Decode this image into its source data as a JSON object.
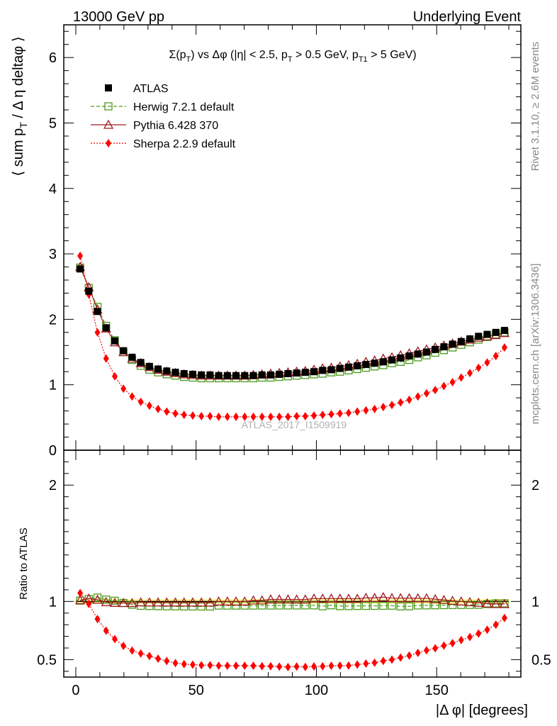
{
  "header": {
    "left": "13000 GeV pp",
    "right": "Underlying Event"
  },
  "side_text": {
    "rivet": "Rivet 3.1.10, ≥ 2.6M events",
    "mcplots": "mcplots.cern.ch [arXiv:1306.3436]"
  },
  "watermark": "ATLAS_2017_I1509919",
  "chart_data": {
    "type": "line",
    "title_parts": {
      "sigma": "Σ(p",
      "sub_T": "T",
      "mid": ") vs Δφ (|η| < 2.5, p",
      "sub_T2": "T",
      "mid2": " > 0.5 GeV, p",
      "sub_T1": "T1",
      "end": " > 5 GeV)"
    },
    "xlabel": "|Δ φ| [degrees]",
    "ylabel_main": "⟨ sum p",
    "ylabel_main_sub": "T",
    "ylabel_main_rest": " / Δ η deltaφ ⟩",
    "ylabel_ratio": "Ratio to ATLAS",
    "xlim": [
      -5,
      185
    ],
    "ylim_main": [
      0,
      6.5
    ],
    "ylim_ratio": [
      0.35,
      2.3
    ],
    "xticks": [
      0,
      50,
      100,
      150
    ],
    "yticks_main": [
      0,
      1,
      2,
      3,
      4,
      5,
      6
    ],
    "yticks_ratio": [
      0.5,
      1,
      2
    ],
    "legend_position": "top-left",
    "x": [
      1.8,
      5.4,
      9.0,
      12.6,
      16.2,
      19.8,
      23.4,
      27.0,
      30.6,
      34.2,
      37.8,
      41.4,
      45.0,
      48.6,
      52.2,
      55.8,
      59.4,
      63.0,
      66.6,
      70.2,
      73.8,
      77.4,
      81.0,
      84.6,
      88.2,
      91.8,
      95.4,
      99.0,
      102.6,
      106.2,
      109.8,
      113.4,
      117.0,
      120.6,
      124.2,
      127.8,
      131.4,
      135.0,
      138.6,
      142.2,
      145.8,
      149.4,
      153.0,
      156.6,
      160.2,
      163.8,
      167.4,
      171.0,
      174.6,
      178.2
    ],
    "series": [
      {
        "name": "ATLAS",
        "color": "#000000",
        "style": "data-squares",
        "values": [
          2.77,
          2.43,
          2.12,
          1.87,
          1.67,
          1.52,
          1.42,
          1.34,
          1.28,
          1.24,
          1.21,
          1.19,
          1.17,
          1.16,
          1.15,
          1.15,
          1.14,
          1.14,
          1.14,
          1.14,
          1.14,
          1.15,
          1.15,
          1.16,
          1.17,
          1.18,
          1.19,
          1.2,
          1.22,
          1.23,
          1.25,
          1.27,
          1.29,
          1.31,
          1.33,
          1.35,
          1.38,
          1.41,
          1.44,
          1.47,
          1.5,
          1.54,
          1.58,
          1.62,
          1.66,
          1.7,
          1.74,
          1.77,
          1.8,
          1.83
        ]
      },
      {
        "name": "Herwig 7.2.1 default",
        "color": "#4a9a1a",
        "style": "dashed-open-squares",
        "values": [
          2.79,
          2.48,
          2.19,
          1.9,
          1.68,
          1.5,
          1.38,
          1.29,
          1.23,
          1.19,
          1.16,
          1.14,
          1.12,
          1.11,
          1.1,
          1.1,
          1.1,
          1.1,
          1.1,
          1.1,
          1.1,
          1.11,
          1.11,
          1.12,
          1.13,
          1.14,
          1.15,
          1.16,
          1.17,
          1.19,
          1.2,
          1.22,
          1.24,
          1.26,
          1.28,
          1.3,
          1.33,
          1.35,
          1.38,
          1.42,
          1.45,
          1.49,
          1.53,
          1.57,
          1.61,
          1.65,
          1.69,
          1.73,
          1.77,
          1.8
        ]
      },
      {
        "name": "Pythia 6.428 370",
        "color": "#a01a22",
        "style": "solid-open-triangles",
        "values": [
          2.8,
          2.49,
          2.15,
          1.86,
          1.65,
          1.5,
          1.4,
          1.33,
          1.27,
          1.23,
          1.2,
          1.18,
          1.16,
          1.15,
          1.14,
          1.14,
          1.14,
          1.14,
          1.14,
          1.14,
          1.15,
          1.16,
          1.17,
          1.18,
          1.19,
          1.2,
          1.21,
          1.23,
          1.25,
          1.26,
          1.28,
          1.3,
          1.32,
          1.35,
          1.37,
          1.4,
          1.42,
          1.45,
          1.48,
          1.51,
          1.54,
          1.57,
          1.6,
          1.63,
          1.66,
          1.69,
          1.72,
          1.74,
          1.76,
          1.79
        ]
      },
      {
        "name": "Sherpa 2.2.9 default",
        "color": "#ff0000",
        "style": "dotted-diamonds",
        "values": [
          2.97,
          2.38,
          1.8,
          1.4,
          1.13,
          0.94,
          0.82,
          0.74,
          0.68,
          0.63,
          0.59,
          0.56,
          0.54,
          0.53,
          0.52,
          0.52,
          0.51,
          0.51,
          0.51,
          0.51,
          0.51,
          0.51,
          0.51,
          0.51,
          0.51,
          0.52,
          0.52,
          0.53,
          0.54,
          0.55,
          0.56,
          0.57,
          0.59,
          0.61,
          0.63,
          0.66,
          0.69,
          0.73,
          0.77,
          0.82,
          0.87,
          0.92,
          0.98,
          1.04,
          1.11,
          1.18,
          1.26,
          1.34,
          1.44,
          1.57
        ]
      }
    ]
  }
}
